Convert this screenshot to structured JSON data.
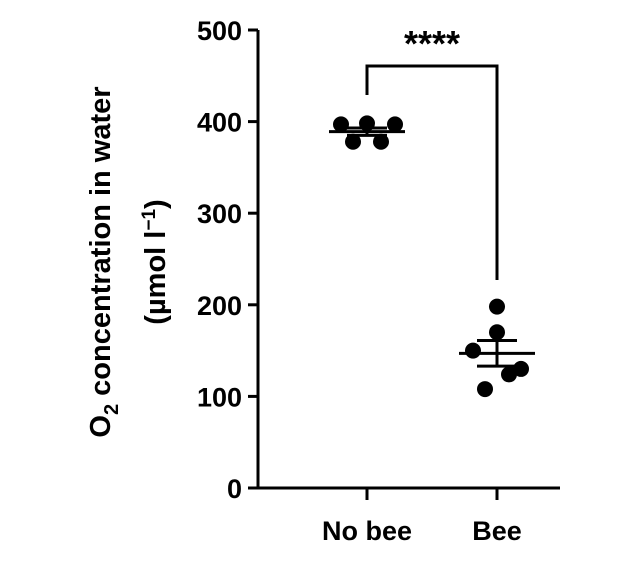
{
  "chart_data": {
    "type": "dot",
    "y_label": {
      "line1": [
        "O",
        "2",
        " concentration in water"
      ],
      "line2": [
        "(µmol l",
        "−1",
        ")"
      ]
    },
    "categories": [
      "No bee",
      "Bee"
    ],
    "groups": [
      {
        "values": [
          397,
          398,
          397,
          378,
          378
        ],
        "mean": 389,
        "sem": 4
      },
      {
        "values": [
          198,
          170,
          150,
          130,
          108,
          124
        ],
        "mean": 147,
        "sem": 14
      }
    ],
    "color": "#000000",
    "significance": "****",
    "ylim": [
      0,
      500
    ],
    "yticks": [
      0,
      100,
      200,
      300,
      400,
      500
    ]
  }
}
